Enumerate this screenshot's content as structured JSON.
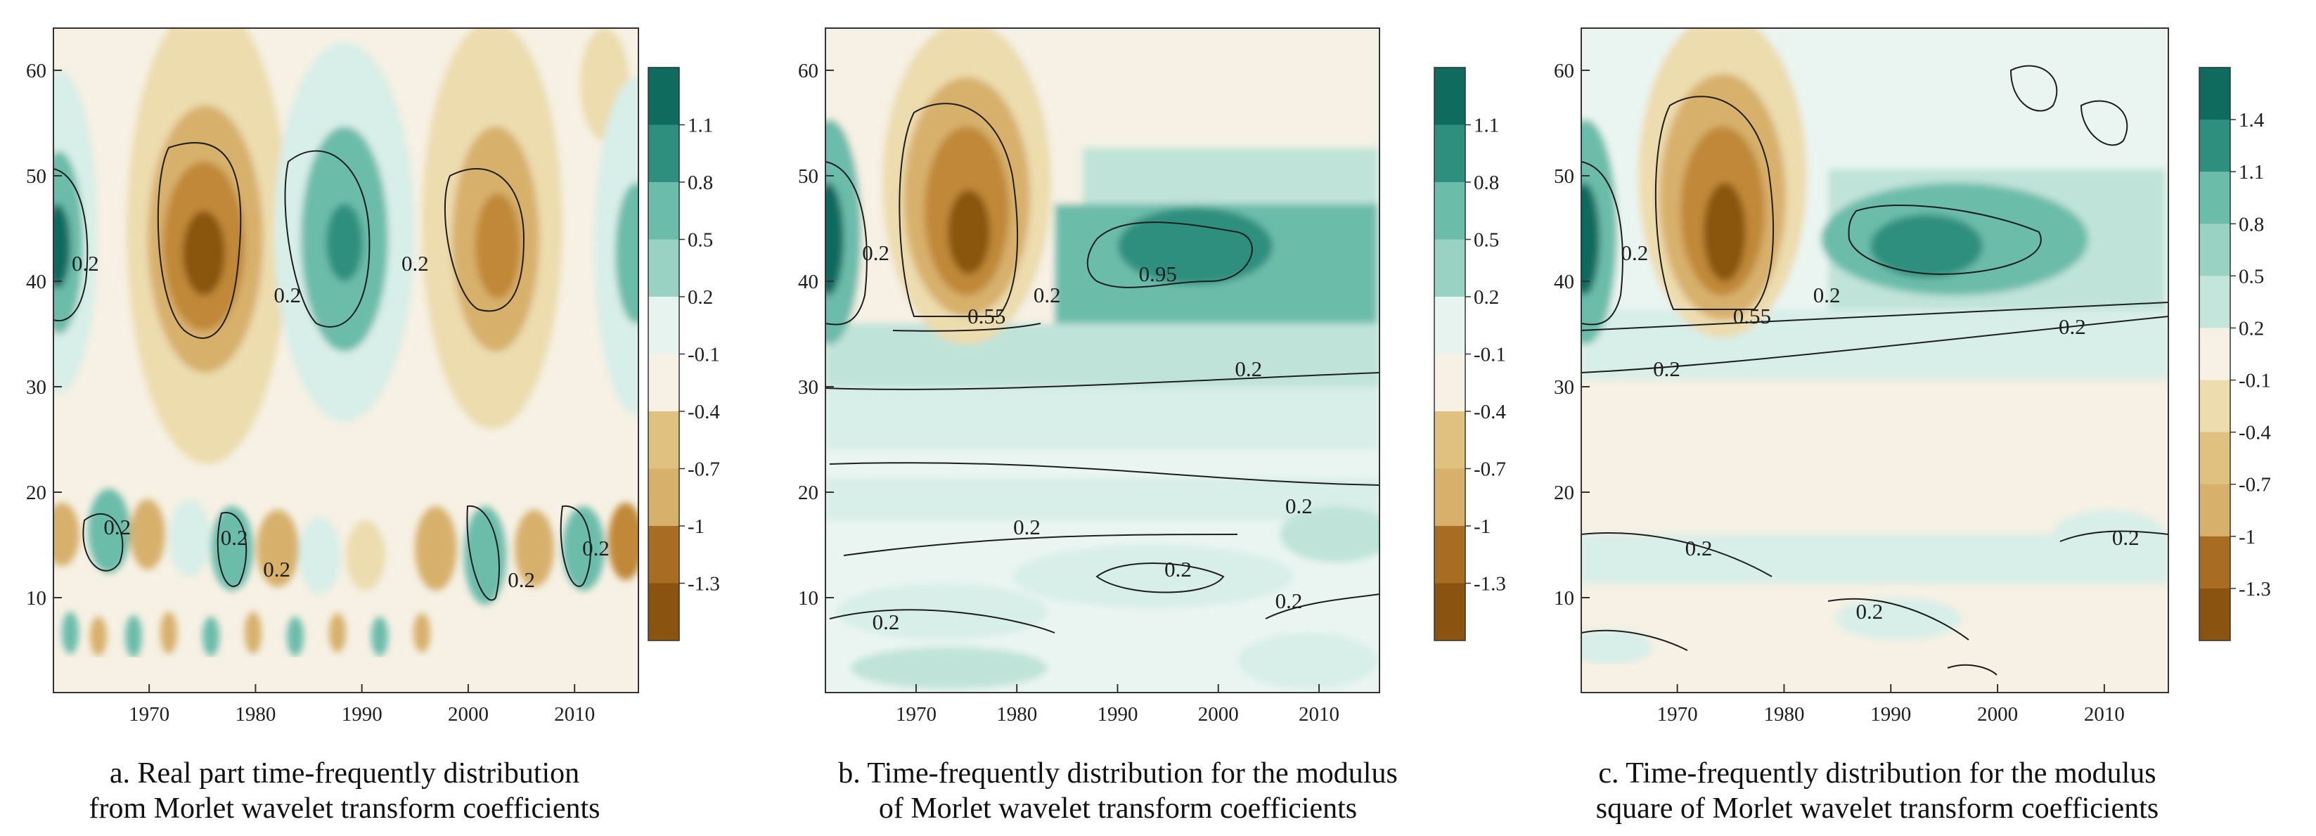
{
  "colors": {
    "brown_dark": "#8a5410",
    "brown_mid": "#c08838",
    "tan_light": "#ecdcae",
    "cream": "#f6f1e4",
    "teal_pale": "#d8eee8",
    "teal_mid": "#6cbcaa",
    "teal_dark": "#0f6b5e",
    "contour": "#1e1e1e"
  },
  "chart_data": [
    {
      "type": "heatmap",
      "title": "",
      "caption_line1": "a. Real part time-frequently distribution",
      "caption_line2": "from Morlet wavelet transform coefficients",
      "x_ticks": [
        "1970",
        "1980",
        "1990",
        "2000",
        "2010"
      ],
      "y_ticks": [
        "10",
        "20",
        "30",
        "40",
        "50",
        "60"
      ],
      "xlim": [
        1961,
        2016
      ],
      "ylim": [
        1,
        64
      ],
      "colorbar_labels": [
        "1.1",
        "0.8",
        "0.5",
        "0.2",
        "-0.1",
        "-0.4",
        "-0.7",
        "-1",
        "-1.3"
      ],
      "contour_labels": [
        {
          "text": "0.2",
          "x": 1964,
          "y": 41
        },
        {
          "text": "0.2",
          "x": 1983,
          "y": 38
        },
        {
          "text": "0.2",
          "x": 1995,
          "y": 41
        },
        {
          "text": "0.2",
          "x": 1967,
          "y": 16
        },
        {
          "text": "0.2",
          "x": 1978,
          "y": 15
        },
        {
          "text": "0.2",
          "x": 1982,
          "y": 12
        },
        {
          "text": "0.2",
          "x": 2005,
          "y": 11
        },
        {
          "text": "0.2",
          "x": 2012,
          "y": 14
        }
      ]
    },
    {
      "type": "heatmap",
      "title": "",
      "caption_line1": "b. Time-frequently distribution for the modulus",
      "caption_line2": "of Morlet wavelet transform coefficients",
      "x_ticks": [
        "1970",
        "1980",
        "1990",
        "2000",
        "2010"
      ],
      "y_ticks": [
        "10",
        "20",
        "30",
        "40",
        "50",
        "60"
      ],
      "xlim": [
        1961,
        2016
      ],
      "ylim": [
        1,
        64
      ],
      "colorbar_labels": [
        "1.1",
        "0.8",
        "0.5",
        "0.2",
        "-0.1",
        "-0.4",
        "-0.7",
        "-1",
        "-1.3"
      ],
      "contour_labels": [
        {
          "text": "0.2",
          "x": 1966,
          "y": 42
        },
        {
          "text": "0.2",
          "x": 1983,
          "y": 38
        },
        {
          "text": "0.55",
          "x": 1977,
          "y": 36
        },
        {
          "text": "0.95",
          "x": 1994,
          "y": 40
        },
        {
          "text": "0.2",
          "x": 2003,
          "y": 31
        },
        {
          "text": "0.2",
          "x": 2008,
          "y": 18
        },
        {
          "text": "0.2",
          "x": 1981,
          "y": 16
        },
        {
          "text": "0.2",
          "x": 1996,
          "y": 12
        },
        {
          "text": "0.2",
          "x": 1967,
          "y": 7
        },
        {
          "text": "0.2",
          "x": 2007,
          "y": 9
        }
      ]
    },
    {
      "type": "heatmap",
      "title": "",
      "caption_line1": "c. Time-frequently distribution for the modulus",
      "caption_line2": "square of Morlet wavelet transform coefficients",
      "x_ticks": [
        "1970",
        "1980",
        "1990",
        "2000",
        "2010"
      ],
      "y_ticks": [
        "10",
        "20",
        "30",
        "40",
        "50",
        "60"
      ],
      "xlim": [
        1961,
        2016
      ],
      "ylim": [
        1,
        64
      ],
      "colorbar_labels": [
        "1.4",
        "1.1",
        "0.8",
        "0.5",
        "0.2",
        "-0.1",
        "-0.4",
        "-0.7",
        "-1",
        "-1.3"
      ],
      "contour_labels": [
        {
          "text": "0.2",
          "x": 1966,
          "y": 42
        },
        {
          "text": "0.2",
          "x": 1984,
          "y": 38
        },
        {
          "text": "0.55",
          "x": 1977,
          "y": 36
        },
        {
          "text": "0.2",
          "x": 2007,
          "y": 35
        },
        {
          "text": "0.2",
          "x": 1969,
          "y": 31
        },
        {
          "text": "0.2",
          "x": 1972,
          "y": 14
        },
        {
          "text": "0.2",
          "x": 1988,
          "y": 8
        },
        {
          "text": "0.2",
          "x": 2012,
          "y": 15
        }
      ]
    }
  ]
}
